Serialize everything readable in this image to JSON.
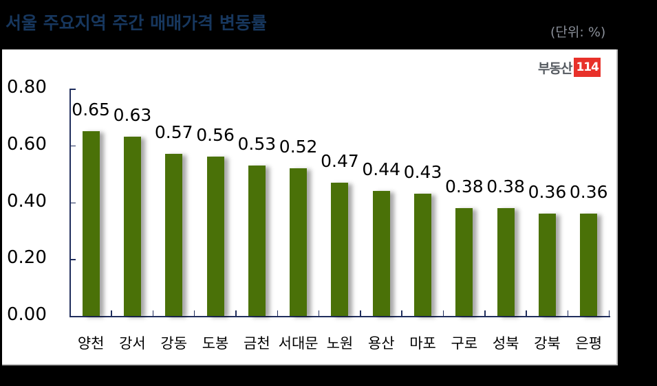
{
  "header": {
    "title": "서울 주요지역 주간 매매가격 변동률",
    "unit": "(단위: %)"
  },
  "logo": {
    "text": "부동산",
    "badge": "114"
  },
  "colors": {
    "bar": "#4a7108",
    "title": "#17375e",
    "axis": "#1f2d5c",
    "logo_badge": "#e8312a"
  },
  "chart_data": {
    "type": "bar",
    "title": "서울 주요지역 주간 매매가격 변동률",
    "unit": "%",
    "xlabel": "",
    "ylabel": "",
    "ylim": [
      0,
      0.8
    ],
    "yticks": [
      "0.00",
      "0.20",
      "0.40",
      "0.60",
      "0.80"
    ],
    "grid": false,
    "legend": null,
    "categories": [
      "양천",
      "강서",
      "강동",
      "도봉",
      "금천",
      "서대문",
      "노원",
      "용산",
      "마포",
      "구로",
      "성북",
      "강북",
      "은평"
    ],
    "values": [
      0.65,
      0.63,
      0.57,
      0.56,
      0.53,
      0.52,
      0.47,
      0.44,
      0.43,
      0.38,
      0.38,
      0.36,
      0.36
    ],
    "value_labels": [
      "0.65",
      "0.63",
      "0.57",
      "0.56",
      "0.53",
      "0.52",
      "0.47",
      "0.44",
      "0.43",
      "0.38",
      "0.38",
      "0.36",
      "0.36"
    ]
  }
}
